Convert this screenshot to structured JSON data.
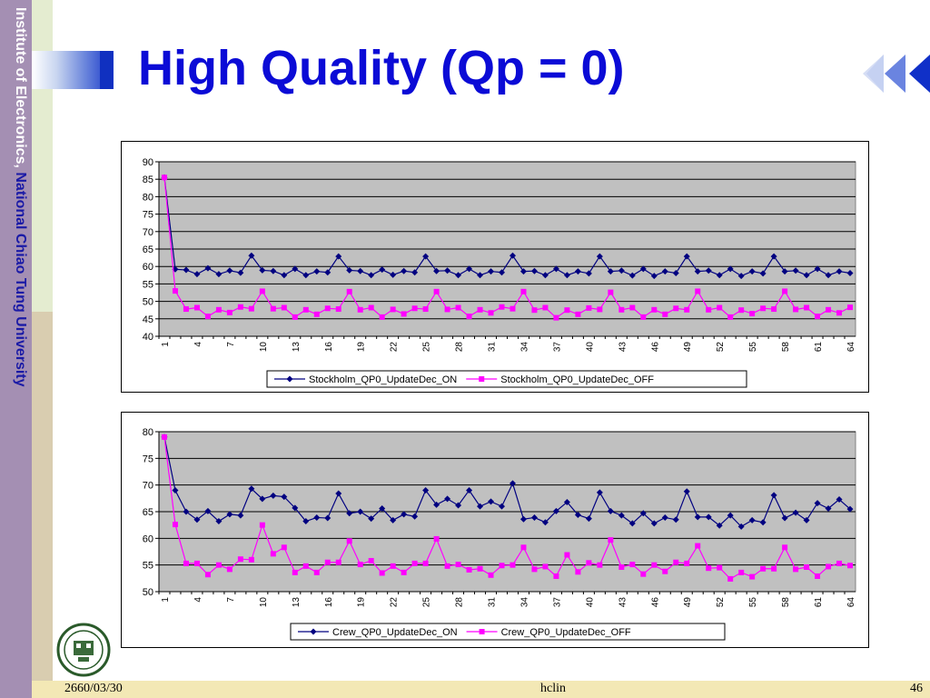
{
  "sidebar": {
    "institute_part1": "Institute of Electronics, ",
    "institute_part2": "National Chiao Tung University"
  },
  "slide": {
    "title": "High Quality (Qp = 0)"
  },
  "footer": {
    "date": "2660/03/30",
    "author": "hclin",
    "page": "46"
  },
  "icons": {
    "navigation": "rewind-arrows-icon",
    "logo": "university-seal"
  },
  "colors": {
    "title": "#0b0bd6",
    "series_on": "#000080",
    "series_off": "#ff00ff",
    "plot_bg": "#c0c0c0"
  },
  "chart_data": [
    {
      "type": "line",
      "x": [
        1,
        2,
        3,
        4,
        5,
        6,
        7,
        8,
        9,
        10,
        11,
        12,
        13,
        14,
        15,
        16,
        17,
        18,
        19,
        20,
        21,
        22,
        23,
        24,
        25,
        26,
        27,
        28,
        29,
        30,
        31,
        32,
        33,
        34,
        35,
        36,
        37,
        38,
        39,
        40,
        41,
        42,
        43,
        44,
        45,
        46,
        47,
        48,
        49,
        50,
        51,
        52,
        53,
        54,
        55,
        56,
        57,
        58,
        59,
        60,
        61,
        62,
        63,
        64
      ],
      "x_tick_labels": [
        "1",
        "4",
        "7",
        "10",
        "13",
        "16",
        "19",
        "22",
        "25",
        "28",
        "31",
        "34",
        "37",
        "40",
        "43",
        "46",
        "49",
        "52",
        "55",
        "58",
        "61",
        "64"
      ],
      "ylim": [
        40,
        90
      ],
      "y_ticks": [
        40,
        45,
        50,
        55,
        60,
        65,
        70,
        75,
        80,
        85,
        90
      ],
      "grid": true,
      "legend_position": "bottom",
      "series": [
        {
          "name": "Stockholm_QP0_UpdateDec_ON",
          "values": [
            85.5,
            59.2,
            59.0,
            57.8,
            59.5,
            57.8,
            58.8,
            58.2,
            63.1,
            58.9,
            58.7,
            57.5,
            59.3,
            57.5,
            58.6,
            58.3,
            62.9,
            58.9,
            58.7,
            57.5,
            59.1,
            57.6,
            58.7,
            58.3,
            62.9,
            58.7,
            58.8,
            57.5,
            59.3,
            57.5,
            58.6,
            58.3,
            63.1,
            58.6,
            58.7,
            57.5,
            59.3,
            57.5,
            58.6,
            58.0,
            62.9,
            58.6,
            58.8,
            57.4,
            59.3,
            57.3,
            58.6,
            58.1,
            62.9,
            58.6,
            58.8,
            57.5,
            59.3,
            57.3,
            58.6,
            58.0,
            62.9,
            58.6,
            58.8,
            57.5,
            59.3,
            57.5,
            58.6,
            58.1
          ]
        },
        {
          "name": "Stockholm_QP0_UpdateDec_OFF",
          "values": [
            85.5,
            53.0,
            47.8,
            48.2,
            45.7,
            47.6,
            46.8,
            48.4,
            47.9,
            52.9,
            47.9,
            48.2,
            45.5,
            47.6,
            46.3,
            48.0,
            47.8,
            52.8,
            47.6,
            48.2,
            45.5,
            47.7,
            46.4,
            48.0,
            47.8,
            52.8,
            47.7,
            48.2,
            45.7,
            47.6,
            46.7,
            48.4,
            47.9,
            52.8,
            47.5,
            48.2,
            45.3,
            47.5,
            46.3,
            48.1,
            47.7,
            52.6,
            47.6,
            48.2,
            45.5,
            47.6,
            46.3,
            48.0,
            47.6,
            52.9,
            47.6,
            48.2,
            45.5,
            47.5,
            46.5,
            48.0,
            47.8,
            52.9,
            47.7,
            48.2,
            45.7,
            47.6,
            46.7,
            48.3
          ]
        }
      ]
    },
    {
      "type": "line",
      "x": [
        1,
        2,
        3,
        4,
        5,
        6,
        7,
        8,
        9,
        10,
        11,
        12,
        13,
        14,
        15,
        16,
        17,
        18,
        19,
        20,
        21,
        22,
        23,
        24,
        25,
        26,
        27,
        28,
        29,
        30,
        31,
        32,
        33,
        34,
        35,
        36,
        37,
        38,
        39,
        40,
        41,
        42,
        43,
        44,
        45,
        46,
        47,
        48,
        49,
        50,
        51,
        52,
        53,
        54,
        55,
        56,
        57,
        58,
        59,
        60,
        61,
        62,
        63,
        64
      ],
      "x_tick_labels": [
        "1",
        "4",
        "7",
        "10",
        "13",
        "16",
        "19",
        "22",
        "25",
        "28",
        "31",
        "34",
        "37",
        "40",
        "43",
        "46",
        "49",
        "52",
        "55",
        "58",
        "61",
        "64"
      ],
      "ylim": [
        50,
        80
      ],
      "y_ticks": [
        50,
        55,
        60,
        65,
        70,
        75,
        80
      ],
      "grid": true,
      "legend_position": "bottom",
      "series": [
        {
          "name": "Crew_QP0_UpdateDec_ON",
          "values": [
            79.0,
            69.0,
            65.0,
            63.5,
            65.1,
            63.2,
            64.5,
            64.3,
            69.3,
            67.4,
            68.0,
            67.8,
            65.7,
            63.2,
            63.9,
            63.8,
            68.4,
            64.7,
            65.0,
            63.7,
            65.6,
            63.4,
            64.5,
            64.1,
            69.0,
            66.3,
            67.4,
            66.2,
            69.0,
            66.0,
            66.9,
            66.0,
            70.3,
            63.6,
            63.9,
            63.0,
            65.1,
            66.8,
            64.4,
            63.7,
            68.6,
            65.1,
            64.3,
            62.8,
            64.7,
            62.8,
            63.9,
            63.5,
            68.8,
            64.0,
            64.0,
            62.4,
            64.3,
            62.2,
            63.4,
            63.0,
            68.1,
            63.8,
            64.8,
            63.4,
            66.6,
            65.6,
            67.3,
            65.5
          ]
        },
        {
          "name": "Crew_QP0_UpdateDec_OFF",
          "values": [
            79.0,
            62.6,
            55.3,
            55.3,
            53.2,
            55.0,
            54.2,
            56.1,
            56.0,
            62.5,
            57.1,
            58.3,
            53.6,
            54.8,
            53.6,
            55.5,
            55.5,
            59.5,
            55.1,
            55.8,
            53.5,
            54.8,
            53.6,
            55.3,
            55.3,
            59.9,
            54.8,
            55.1,
            54.1,
            54.3,
            53.1,
            54.9,
            55.0,
            58.3,
            54.2,
            54.7,
            52.9,
            56.9,
            53.7,
            55.4,
            55.0,
            59.7,
            54.6,
            55.1,
            53.3,
            55.0,
            53.8,
            55.5,
            55.3,
            58.6,
            54.4,
            54.5,
            52.4,
            53.6,
            52.8,
            54.3,
            54.3,
            58.3,
            54.2,
            54.6,
            52.9,
            54.7,
            55.3,
            54.9
          ]
        }
      ]
    }
  ]
}
